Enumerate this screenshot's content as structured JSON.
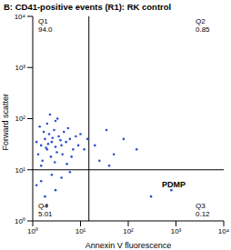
{
  "chart_data": {
    "type": "scatter",
    "title": "B: CD41-positive events (R1): RK control",
    "x_label": "Annexin V fluorescence",
    "y_label": "Forward scatter",
    "log": true,
    "color": "#2e4fc8",
    "marker": "dot",
    "x": [
      1.5,
      2,
      2.5,
      3,
      1.8,
      2.2,
      3.5,
      4,
      1.3,
      2.8,
      5,
      6,
      1.6,
      2.4,
      3.2,
      4.5,
      7,
      1.4,
      2,
      3,
      5.5,
      8,
      1.2,
      2.6,
      3.8,
      2.1,
      1.9,
      4.2,
      6.5,
      1.7,
      9,
      10,
      3.3,
      2.3,
      1.5,
      2.9,
      5.2,
      1.5,
      2.5,
      3,
      1.8,
      4,
      6,
      2,
      1.2,
      20,
      25,
      35,
      50,
      80,
      150,
      40,
      800,
      300,
      12,
      14
    ],
    "values": [
      30,
      25,
      35,
      28,
      40,
      50,
      45,
      30,
      20,
      60,
      35,
      40,
      15,
      18,
      22,
      55,
      25,
      70,
      80,
      90,
      65,
      45,
      35,
      42,
      38,
      32,
      27,
      20,
      18,
      55,
      30,
      50,
      100,
      120,
      12,
      14,
      13,
      6,
      8,
      4,
      3,
      7,
      9,
      2,
      5,
      30,
      15,
      60,
      20,
      40,
      25,
      12,
      4,
      3,
      25,
      40
    ],
    "xlim": [
      1,
      10000
    ],
    "ylim": [
      1,
      10000
    ],
    "xticks": [
      {
        "value": 1,
        "label": "10⁰"
      },
      {
        "value": 10,
        "label": "10¹"
      },
      {
        "value": 100,
        "label": "10²"
      },
      {
        "value": 1000,
        "label": "10³"
      },
      {
        "value": 10000,
        "label": "10⁴"
      }
    ],
    "yticks": [
      {
        "value": 1,
        "label": "10⁰"
      },
      {
        "value": 10,
        "label": "10¹"
      },
      {
        "value": 100,
        "label": "10²"
      },
      {
        "value": 1000,
        "label": "10³"
      },
      {
        "value": 10000,
        "label": "10⁴"
      }
    ],
    "quadrant_lines": {
      "x": 15,
      "y": 10
    },
    "quadrants": [
      {
        "name": "Q1",
        "value": 94.0,
        "value_label": "94.0"
      },
      {
        "name": "Q2",
        "value": 0.85,
        "value_label": "0.85"
      },
      {
        "name": "Q3",
        "value": 0.12,
        "value_label": "0.12"
      },
      {
        "name": "Q4",
        "value": 5.01,
        "value_label": "5.01"
      }
    ],
    "annotations": [
      "PDMP"
    ]
  }
}
